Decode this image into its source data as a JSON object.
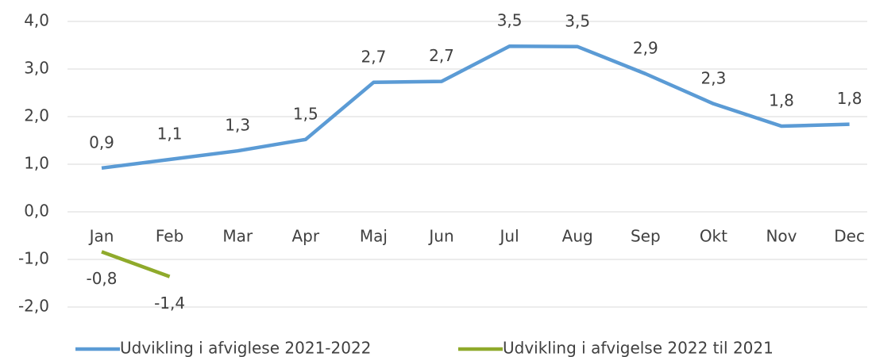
{
  "chart_data": {
    "type": "line",
    "categories": [
      "Jan",
      "Feb",
      "Mar",
      "Apr",
      "Maj",
      "Jun",
      "Jul",
      "Aug",
      "Sep",
      "Okt",
      "Nov",
      "Dec"
    ],
    "series": [
      {
        "name": "Udvikling i afviglese 2021-2022",
        "color": "#5b9bd5",
        "values": [
          0.92,
          1.1,
          1.28,
          1.52,
          2.72,
          2.74,
          3.48,
          3.47,
          2.9,
          2.27,
          1.8,
          1.84
        ],
        "value_labels": [
          "0,9",
          "1,1",
          "1,3",
          "1,5",
          "2,7",
          "2,7",
          "3,5",
          "3,5",
          "2,9",
          "2,3",
          "1,8",
          "1,8"
        ]
      },
      {
        "name": "Udvikling i afvigelse 2022 til 2021",
        "color": "#8faa2b",
        "values": [
          -0.84,
          -1.36,
          null,
          null,
          null,
          null,
          null,
          null,
          null,
          null,
          null,
          null
        ],
        "value_labels": [
          "-0,8",
          "-1,4",
          null,
          null,
          null,
          null,
          null,
          null,
          null,
          null,
          null,
          null
        ]
      }
    ],
    "ylim": [
      -2,
      4
    ],
    "yticks": [
      {
        "value": -2,
        "label": "-2,0"
      },
      {
        "value": -1,
        "label": "-1,0"
      },
      {
        "value": 0,
        "label": "0,0"
      },
      {
        "value": 1,
        "label": "1,0"
      },
      {
        "value": 2,
        "label": "2,0"
      },
      {
        "value": 3,
        "label": "3,0"
      },
      {
        "value": 4,
        "label": "4,0"
      }
    ],
    "grid": true,
    "legend": "bottom"
  }
}
